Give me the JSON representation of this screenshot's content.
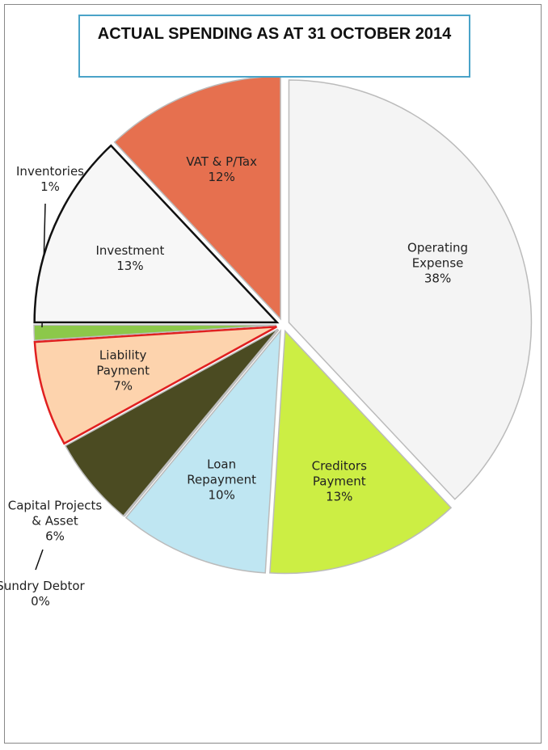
{
  "chart_data": {
    "type": "pie",
    "title": "ACTUAL SPENDING AS AT 31 OCTOBER 2014",
    "categories": [
      "Operating Expense",
      "Creditors Payment",
      "Loan Repayment",
      "Sundry Debtor",
      "Capital Projects & Asset",
      "Liability Payment",
      "Inventories",
      "Investment",
      "VAT & P/Tax"
    ],
    "values": [
      38,
      13,
      10,
      0,
      6,
      7,
      1,
      13,
      12
    ],
    "value_labels": [
      "38%",
      "13%",
      "10%",
      "0%",
      "6%",
      "7%",
      "1%",
      "13%",
      "12%"
    ],
    "colors": [
      "#f4f4f4",
      "#ccee44",
      "#bfe6f2",
      "#9aa060",
      "#4b4b22",
      "#fdd3ad",
      "#8cc84a",
      "#f7f7f7",
      "#e6704f"
    ]
  }
}
